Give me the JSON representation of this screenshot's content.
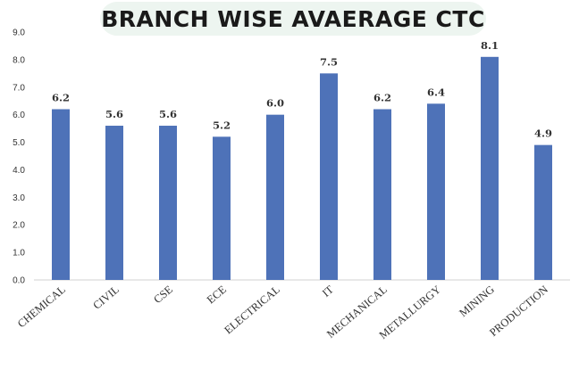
{
  "chart_data": {
    "type": "bar",
    "title": "BRANCH WISE AVAERAGE CTC",
    "categories": [
      "CHEMICAL",
      "CIVIL",
      "CSE",
      "ECE",
      "ELECTRICAL",
      "IT",
      "MECHANICAL",
      "METALLURGY",
      "MINING",
      "PRODUCTION"
    ],
    "values": [
      6.2,
      5.6,
      5.6,
      5.2,
      6.0,
      7.5,
      6.2,
      6.4,
      8.1,
      4.9
    ],
    "value_labels": [
      "6.2",
      "5.6",
      "5.6",
      "5.2",
      "6.0",
      "7.5",
      "6.2",
      "6.4",
      "8.1",
      "4.9"
    ],
    "ylim": [
      0,
      9
    ],
    "yticks": [
      "0.0",
      "1.0",
      "2.0",
      "3.0",
      "4.0",
      "5.0",
      "6.0",
      "7.0",
      "8.0",
      "9.0"
    ],
    "grid": false,
    "legend": "none",
    "bar_color": "#4e72b8",
    "xlabel": "",
    "ylabel": ""
  }
}
